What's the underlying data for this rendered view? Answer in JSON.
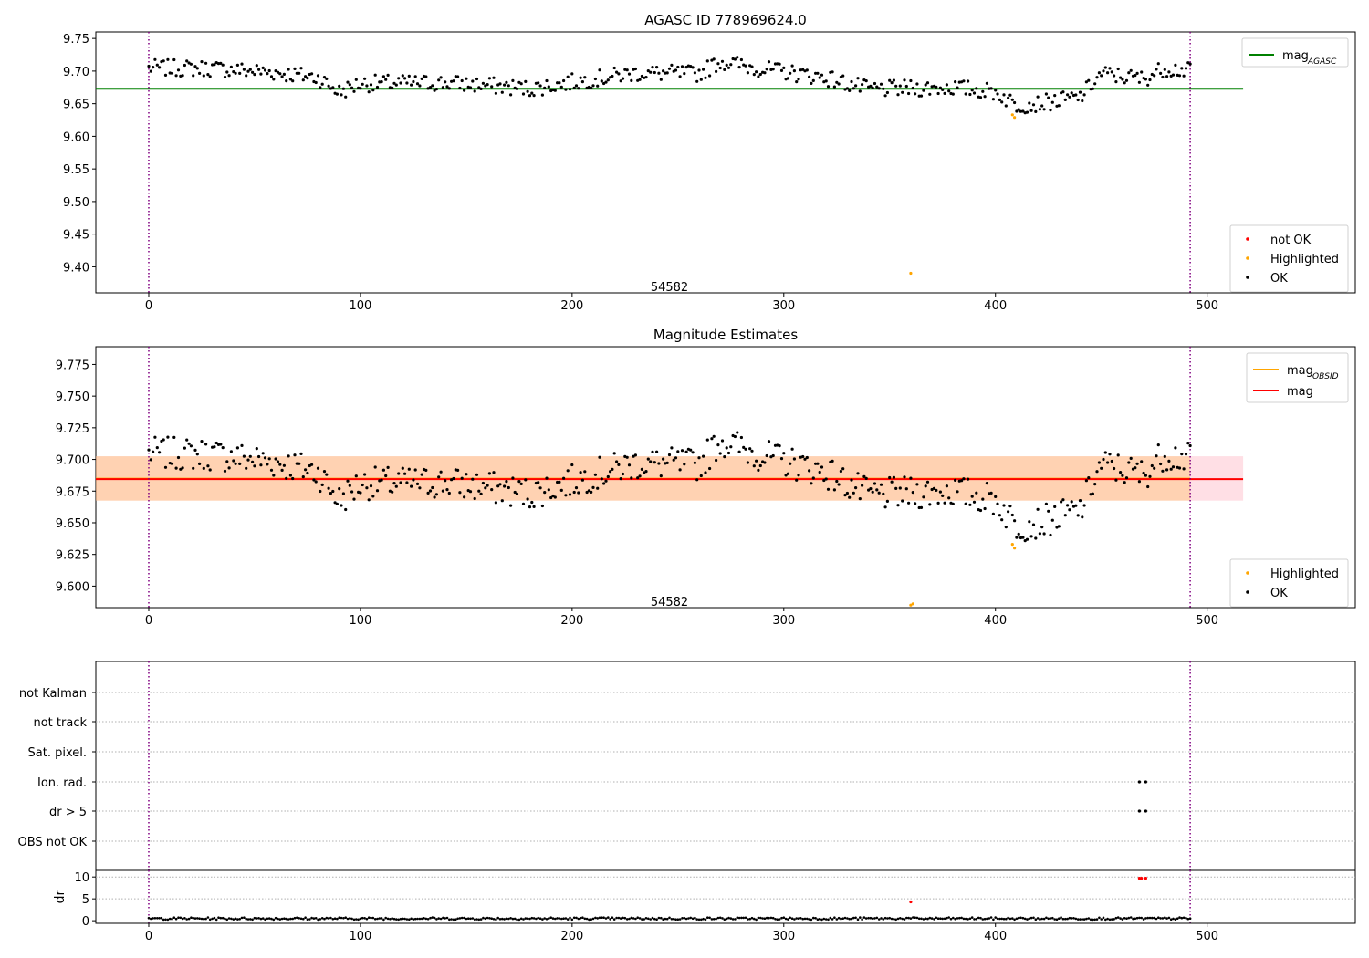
{
  "chart_data": [
    {
      "type": "scatter",
      "title": "AGASC ID 778969624.0",
      "xlim": [
        -25,
        570
      ],
      "ylim": [
        9.36,
        9.76
      ],
      "xticks": [
        "0",
        "100",
        "200",
        "300",
        "400",
        "500"
      ],
      "yticks": [
        "9.40",
        "9.45",
        "9.50",
        "9.55",
        "9.60",
        "9.65",
        "9.70",
        "9.75"
      ],
      "annotation": {
        "text": "54582",
        "x": 246,
        "y": 9.37
      },
      "vlines": [
        0,
        492
      ],
      "hline": {
        "name": "mag",
        "name_sub": "AGASC",
        "y": 9.673,
        "x": [
          -25,
          517
        ],
        "color": "#008000"
      },
      "legend_lines": [
        {
          "name": "mag",
          "sub": "AGASC",
          "color": "#008000"
        }
      ],
      "legend_points": [
        {
          "name": "not OK",
          "color": "#ff0000"
        },
        {
          "name": "Highlighted",
          "color": "#ffa500"
        },
        {
          "name": "OK",
          "color": "#000000"
        }
      ],
      "series": [
        {
          "name": "OK",
          "color": "#000000",
          "model": "mag"
        },
        {
          "name": "Highlighted",
          "color": "#ffa500",
          "points": [
            [
              408,
              9.633
            ],
            [
              409,
              9.629
            ],
            [
              360,
              9.39
            ]
          ]
        }
      ]
    },
    {
      "type": "scatter",
      "title": "Magnitude Estimates",
      "xlim": [
        -25,
        570
      ],
      "ylim": [
        9.583,
        9.789
      ],
      "xticks": [
        "0",
        "100",
        "200",
        "300",
        "400",
        "500"
      ],
      "yticks": [
        "9.600",
        "9.625",
        "9.650",
        "9.675",
        "9.700",
        "9.725",
        "9.750",
        "9.775"
      ],
      "annotation": {
        "text": "54582",
        "x": 246,
        "y": 9.588
      },
      "vlines": [
        0,
        492
      ],
      "bands": [
        {
          "y": [
            9.6675,
            9.7025
          ],
          "x": [
            -25,
            517
          ],
          "color": "#ffc0cb",
          "opacity": 0.5
        },
        {
          "y": [
            9.6675,
            9.7025
          ],
          "x": [
            -25,
            492
          ],
          "color": "#ffa500",
          "opacity": 0.22
        }
      ],
      "hlines": [
        {
          "name": "mag",
          "sub": "OBSID",
          "y": 9.6848,
          "x": [
            -25,
            492
          ],
          "color": "#ffa500"
        },
        {
          "name": "mag",
          "y": 9.6845,
          "x": [
            -25,
            517
          ],
          "color": "#ff0000"
        }
      ],
      "legend_lines": [
        {
          "name": "mag",
          "sub": "OBSID",
          "color": "#ffa500"
        },
        {
          "name": "mag",
          "color": "#ff0000"
        }
      ],
      "legend_points": [
        {
          "name": "Highlighted",
          "color": "#ffa500"
        },
        {
          "name": "OK",
          "color": "#000000"
        }
      ],
      "series": [
        {
          "name": "OK",
          "color": "#000000",
          "model": "mag"
        },
        {
          "name": "Highlighted",
          "color": "#ffa500",
          "points": [
            [
              408,
              9.633
            ],
            [
              409,
              9.63
            ],
            [
              360,
              9.585
            ],
            [
              361,
              9.586
            ]
          ]
        }
      ]
    },
    {
      "type": "scatter",
      "xlim": [
        -25,
        570
      ],
      "categories": [
        "not Kalman",
        "not track",
        "Sat. pixel.",
        "Ion. rad.",
        "dr > 5",
        "OBS not OK"
      ],
      "flag_points": [
        {
          "category": "Ion. rad.",
          "x": [
            468,
            471
          ]
        },
        {
          "category": "dr > 5",
          "x": [
            468,
            471
          ]
        }
      ],
      "vlines": [
        0,
        492
      ]
    },
    {
      "type": "scatter",
      "ylabel": "dr",
      "xlim": [
        -25,
        570
      ],
      "ylim": [
        -0.6,
        11.5
      ],
      "xticks": [
        "0",
        "100",
        "200",
        "300",
        "400",
        "500"
      ],
      "yticks": [
        "0",
        "5",
        "10"
      ],
      "vlines": [
        0,
        492
      ],
      "series": [
        {
          "name": "OK",
          "color": "#000000",
          "model": "dr"
        },
        {
          "name": "not OK",
          "color": "#ff0000",
          "points": [
            [
              360,
              4.3
            ],
            [
              468,
              9.7
            ],
            [
              469,
              9.7
            ],
            [
              471,
              9.7
            ]
          ]
        }
      ]
    }
  ]
}
